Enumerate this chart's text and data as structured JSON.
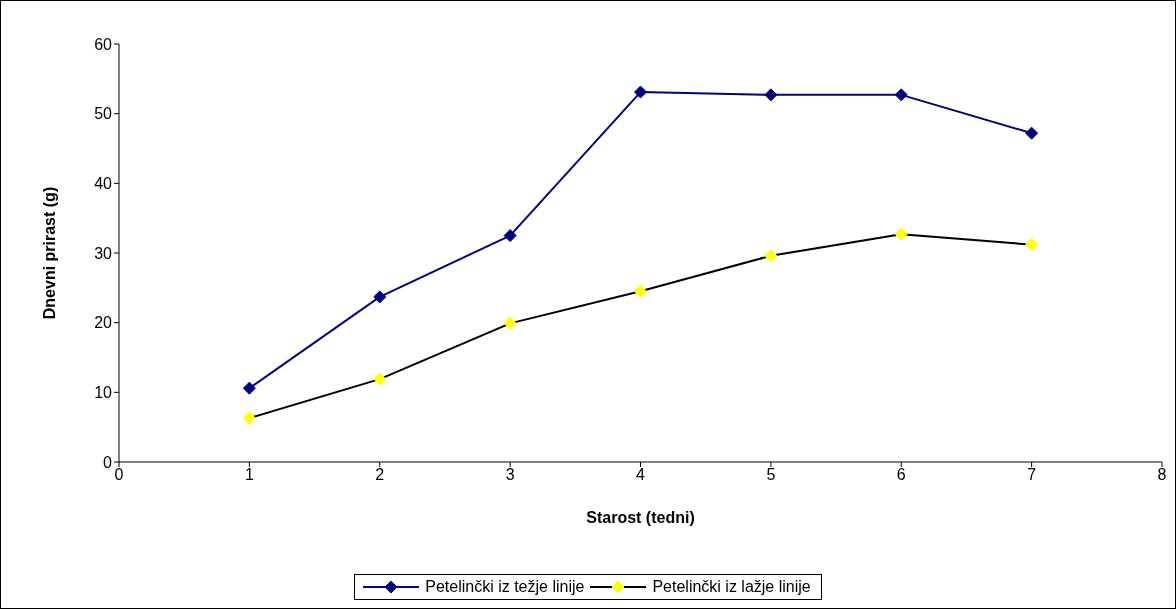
{
  "chart_data": {
    "type": "line",
    "xlabel": "Starost (tedni)",
    "ylabel": "Dnevni prirast (g)",
    "x": [
      1,
      2,
      3,
      4,
      5,
      6,
      7
    ],
    "xlim": [
      0,
      8
    ],
    "xticks": [
      0,
      1,
      2,
      3,
      4,
      5,
      6,
      7,
      8
    ],
    "ylim": [
      0,
      60
    ],
    "yticks": [
      0,
      10,
      20,
      30,
      40,
      50,
      60
    ],
    "grid": false,
    "legend": "bottom",
    "marker": "diamond",
    "line_style": "solid",
    "series": [
      {
        "name": "Petelinčki iz težje linije",
        "color": "#000080",
        "values": [
          10.6,
          23.7,
          32.5,
          53.1,
          52.7,
          52.7,
          47.2
        ]
      },
      {
        "name": "Petelinčki iz lažje linije",
        "color": "#000000",
        "colors": [
          "#ffff00",
          "#ffff00",
          "#ffff00",
          "#ffff00",
          "#ffff00",
          "#ffff00",
          "#ffff00"
        ],
        "values": [
          6.3,
          11.9,
          19.9,
          24.5,
          29.6,
          32.7,
          31.2
        ]
      }
    ]
  }
}
